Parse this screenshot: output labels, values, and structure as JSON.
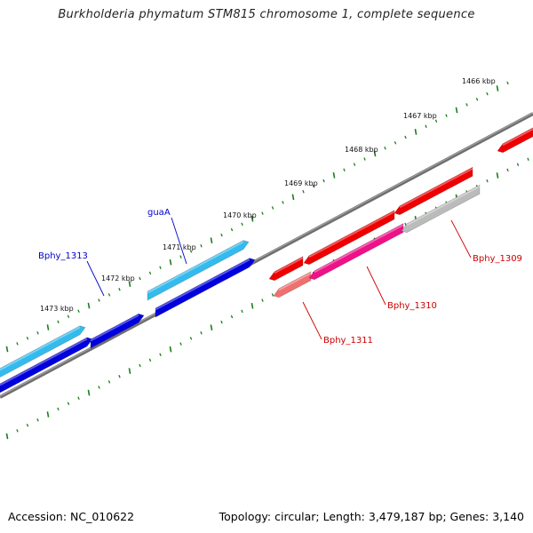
{
  "title": "Burkholderia phymatum STM815 chromosome 1, complete sequence",
  "footer": {
    "accession": "Accession: NC_010622",
    "summary": "Topology: circular; Length: 3,479,187 bp; Genes: 3,140"
  },
  "ticks": [
    {
      "label": "1466 kbp",
      "kbp": 1466
    },
    {
      "label": "1467 kbp",
      "kbp": 1467
    },
    {
      "label": "1468 kbp",
      "kbp": 1468
    },
    {
      "label": "1469 kbp",
      "kbp": 1469
    },
    {
      "label": "1470 kbp",
      "kbp": 1470
    },
    {
      "label": "1471 kbp",
      "kbp": 1471
    },
    {
      "label": "1472 kbp",
      "kbp": 1472
    },
    {
      "label": "1473 kbp",
      "kbp": 1473
    }
  ],
  "gene_labels": [
    {
      "name": "guaA",
      "color": "#0000cc"
    },
    {
      "name": "Bphy_1313",
      "color": "#0000cc"
    },
    {
      "name": "Bphy_1309",
      "color": "#cc0000"
    },
    {
      "name": "Bphy_1310",
      "color": "#cc0000"
    },
    {
      "name": "Bphy_1311",
      "color": "#cc0000"
    }
  ],
  "colors": {
    "backbone": "#707070",
    "tick": "#1a7f1a",
    "forward_cds": "#33bbee",
    "forward_gene": "#0000dd",
    "reverse_red": "#ee0000",
    "reverse_pink": "#ee1188",
    "reverse_salmon": "#f07070",
    "reverse_gray": "#bbbbbb"
  }
}
